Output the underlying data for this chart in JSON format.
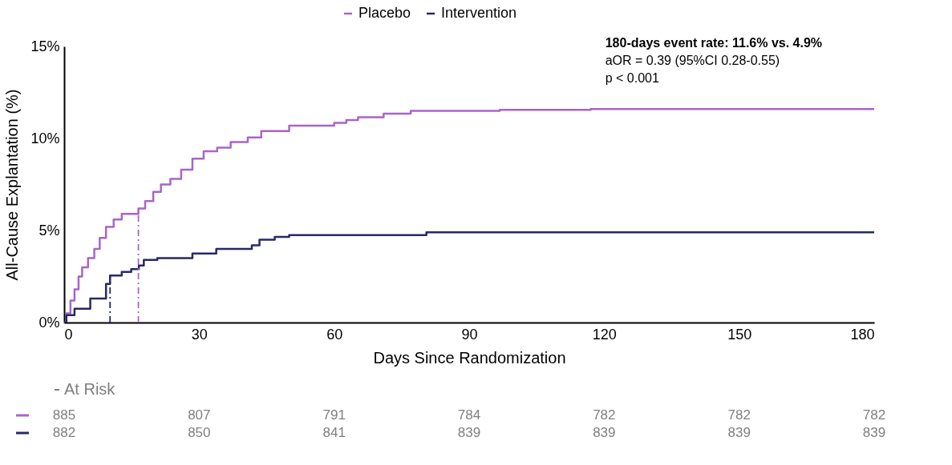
{
  "chart_data": {
    "type": "step",
    "xlabel": "Days Since Randomization",
    "ylabel": "All-Cause Explantation (%)",
    "xlim": [
      0,
      180
    ],
    "xticks": [
      0,
      30,
      60,
      90,
      120,
      150,
      180
    ],
    "ylim": [
      0,
      15
    ],
    "yticks": [
      {
        "value": 0,
        "label": "0%"
      },
      {
        "value": 5,
        "label": "5%"
      },
      {
        "value": 10,
        "label": "10%"
      },
      {
        "value": 15,
        "label": "15%"
      }
    ],
    "grid": false,
    "legend": "top",
    "line_style": "solid",
    "marker": "none",
    "series": [
      {
        "name": "Placebo",
        "color": "#a865c9",
        "x": [
          0,
          0.5,
          1.4,
          2.3,
          3.2,
          4,
          5.3,
          6.7,
          7.9,
          9.3,
          11,
          12.8,
          16.5,
          18,
          19.8,
          21.5,
          23.6,
          26,
          28.5,
          31,
          34,
          37,
          40.8,
          43.8,
          50,
          60,
          62.7,
          65.3,
          71,
          77,
          96.8,
          117,
          180
        ],
        "values": [
          0,
          0.5,
          1.2,
          1.8,
          2.5,
          3.0,
          3.5,
          4.0,
          4.6,
          5.2,
          5.6,
          5.9,
          6.2,
          6.6,
          7.1,
          7.5,
          7.8,
          8.3,
          8.9,
          9.3,
          9.5,
          9.8,
          10.05,
          10.4,
          10.7,
          10.85,
          11.0,
          11.15,
          11.35,
          11.5,
          11.55,
          11.6,
          11.6
        ]
      },
      {
        "name": "Intervention",
        "color": "#262a64",
        "x": [
          0,
          0.5,
          2.3,
          5.8,
          9.3,
          10.2,
          12.8,
          14.9,
          16.6,
          17.7,
          20.7,
          28.5,
          33.8,
          41.7,
          43.4,
          46.8,
          50,
          80.5,
          180
        ],
        "values": [
          0,
          0.4,
          0.75,
          1.3,
          2.1,
          2.55,
          2.75,
          2.9,
          3.1,
          3.4,
          3.5,
          3.75,
          4.0,
          4.2,
          4.5,
          4.65,
          4.75,
          4.9,
          4.9
        ]
      },
      {
        "type": "line",
        "color": "#262a64",
        "line_style": "dashed",
        "x": [
          10.2,
          10.2
        ],
        "values": [
          0,
          2.55
        ]
      },
      {
        "type": "line",
        "color": "#a865c9",
        "line_style": "dashed",
        "x": [
          16.5,
          16.5
        ],
        "values": [
          0,
          5.9
        ]
      }
    ],
    "annotations": [
      "180-days event rate: 11.6% vs. 4.9%",
      "aOR = 0.39 (95%CI 0.28-0.55)",
      "p < 0.001",
      "At Risk",
      "885",
      "807",
      "791",
      "784",
      "782",
      "782",
      "782",
      "882",
      "850",
      "841",
      "839",
      "839",
      "839",
      "839"
    ]
  }
}
